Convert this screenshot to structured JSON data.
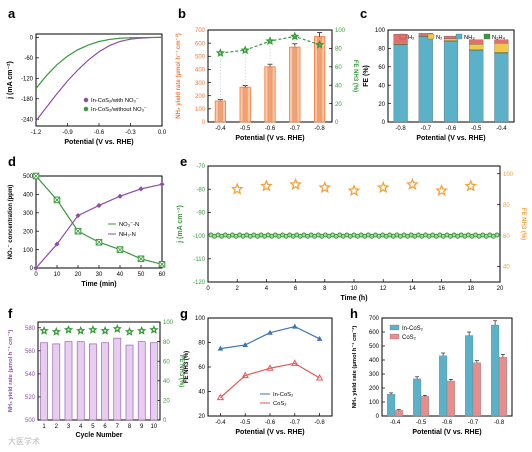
{
  "colors": {
    "orange": "#f07a3a",
    "green": "#3a9a3c",
    "purple": "#8e4fa8",
    "teal": "#5ab1c8",
    "pink": "#e88c8c",
    "blue": "#3f73b5",
    "star": "#f4a23a"
  },
  "panels": {
    "a": {
      "letter": "a",
      "chart_data": {
        "type": "line",
        "xlabel": "Potential (V vs. RHE)",
        "ylabel": "j (mA cm⁻²)",
        "xlim": [
          -1.2,
          0.0
        ],
        "ylim": [
          -260,
          10
        ],
        "xticks": [
          "-1.2",
          "-0.9",
          "-0.6",
          "-0.3",
          "0.0"
        ],
        "yticks": [
          "0",
          "-60",
          "-120",
          "-180",
          "-240"
        ],
        "legend_position": "bottom-right",
        "series": [
          {
            "name": "In-CoS₂/with NO₃⁻",
            "color": "#8e4fa8",
            "x": [
              -1.2,
              -1.1,
              -1.0,
              -0.9,
              -0.8,
              -0.7,
              -0.6,
              -0.5,
              -0.4,
              -0.3,
              -0.2,
              -0.1,
              0.0
            ],
            "y": [
              -245,
              -205,
              -165,
              -128,
              -95,
              -66,
              -42,
              -24,
              -12,
              -5,
              -2,
              -0.5,
              0
            ]
          },
          {
            "name": "In-CoS₂/without NO₃⁻",
            "color": "#3a9a3c",
            "x": [
              -1.2,
              -1.1,
              -1.0,
              -0.9,
              -0.8,
              -0.7,
              -0.6,
              -0.5,
              -0.4,
              -0.3,
              -0.2,
              -0.1,
              0.0
            ],
            "y": [
              -150,
              -112,
              -80,
              -55,
              -36,
              -22,
              -12,
              -6,
              -2.5,
              -1,
              -0.4,
              -0.1,
              0
            ]
          }
        ]
      }
    },
    "b": {
      "letter": "b",
      "chart_data": {
        "type": "bar",
        "xlabel": "Potential (V vs. RHE)",
        "ylabel": "NH₃ yield rate (μmol h⁻¹ cm⁻²)",
        "y2label": "FE NH3 (%)",
        "categories": [
          "-0.4",
          "-0.5",
          "-0.6",
          "-0.7",
          "-0.8"
        ],
        "ylim": [
          0,
          700
        ],
        "yticks": [
          "0",
          "100",
          "200",
          "300",
          "400",
          "500",
          "600",
          "700"
        ],
        "y2lim": [
          0,
          100
        ],
        "y2ticks": [
          "0",
          "20",
          "40",
          "60",
          "80",
          "100"
        ],
        "values": [
          160,
          265,
          420,
          570,
          650
        ],
        "errors": [
          10,
          12,
          20,
          25,
          30
        ],
        "fe": [
          75,
          78,
          88,
          93,
          84
        ],
        "fe_errors": [
          2,
          2,
          2,
          2,
          4
        ]
      }
    },
    "c": {
      "letter": "c",
      "chart_data": {
        "type": "bar",
        "stacked": true,
        "xlabel": "Potential (V vs. RHE)",
        "ylabel": "FE (%)",
        "categories": [
          "-0.8",
          "-0.7",
          "-0.6",
          "-0.5",
          "-0.4"
        ],
        "ylim": [
          0,
          100
        ],
        "yticks": [
          "0",
          "20",
          "40",
          "60",
          "80",
          "100"
        ],
        "legend_position": "top",
        "series": [
          {
            "name": "NH₃",
            "color": "#5ab1c8",
            "values": [
              84,
              93,
              88,
              78,
              75
            ]
          },
          {
            "name": "N₂H₄",
            "color": "#3a9a3c",
            "values": [
              0.5,
              0.4,
              0.4,
              0.5,
              0.5
            ]
          },
          {
            "name": "N₂",
            "color": "#f2c84b",
            "values": [
              1,
              1,
              2,
              6,
              10
            ]
          },
          {
            "name": "H₂",
            "color": "#e0706a",
            "values": [
              10,
              2,
              3,
              5,
              4
            ]
          }
        ]
      }
    },
    "d": {
      "letter": "d",
      "chart_data": {
        "type": "line",
        "xlabel": "Time (min)",
        "ylabel": "NO₃⁻ concentration (ppm)",
        "xlim": [
          0,
          60
        ],
        "ylim": [
          0,
          500
        ],
        "xticks": [
          "0",
          "10",
          "20",
          "30",
          "40",
          "50",
          "60"
        ],
        "yticks": [
          "0",
          "100",
          "200",
          "300",
          "400",
          "500"
        ],
        "legend_position": "right",
        "series": [
          {
            "name": "NO₃⁻-N",
            "color": "#3a9a3c",
            "x": [
              0,
              10,
              20,
              30,
              40,
              50,
              60
            ],
            "y": [
              500,
              370,
              200,
              140,
              100,
              50,
              20
            ]
          },
          {
            "name": "NH₃-N",
            "color": "#8e4fa8",
            "x": [
              0,
              10,
              20,
              30,
              40,
              50,
              60
            ],
            "y": [
              0,
              130,
              285,
              340,
              390,
              430,
              455
            ]
          }
        ]
      }
    },
    "e": {
      "letter": "e",
      "chart_data": {
        "type": "scatter",
        "xlabel": "Time (h)",
        "ylabel": "j (mA cm⁻²)",
        "y2label": "FE NH3 (%)",
        "xlim": [
          0,
          20
        ],
        "ylim": [
          -120,
          -70
        ],
        "xticks": [
          "0",
          "2",
          "4",
          "6",
          "8",
          "10",
          "12",
          "14",
          "16",
          "18",
          "20"
        ],
        "yticks": [
          "-70",
          "-80",
          "-90",
          "-100",
          "-110",
          "-120"
        ],
        "y2lim": [
          30,
          105
        ],
        "y2ticks": [
          "40",
          "60",
          "80",
          "100"
        ],
        "current_value": -100,
        "fe_x": [
          2,
          4,
          6,
          8,
          10,
          12,
          14,
          16,
          18
        ],
        "fe_y": [
          90,
          92,
          93,
          91,
          89,
          91,
          93,
          89,
          92
        ]
      }
    },
    "f": {
      "letter": "f",
      "chart_data": {
        "type": "bar",
        "xlabel": "Cycle Number",
        "ylabel": "NH₃ yield rate (μmol h⁻¹ cm⁻²)",
        "y2label": "FE NH3 (%)",
        "categories": [
          "1",
          "2",
          "3",
          "4",
          "5",
          "6",
          "7",
          "8",
          "9",
          "10"
        ],
        "ylim": [
          500,
          585
        ],
        "yticks": [
          "500",
          "520",
          "540",
          "560",
          "580"
        ],
        "y2lim": [
          0,
          100
        ],
        "y2ticks": [
          "0",
          "20",
          "40",
          "60",
          "80",
          "100"
        ],
        "values": [
          567,
          566,
          568,
          568,
          566,
          567,
          571,
          565,
          568,
          567
        ],
        "fe": [
          91,
          90,
          92,
          91,
          92,
          91,
          93,
          90,
          91,
          92
        ]
      }
    },
    "g": {
      "letter": "g",
      "chart_data": {
        "type": "line",
        "xlabel": "Potential (V vs. RHE)",
        "ylabel": "FE NH3 (%)",
        "categories": [
          "-0.4",
          "-0.5",
          "-0.6",
          "-0.7",
          "-0.8"
        ],
        "ylim": [
          20,
          100
        ],
        "yticks": [
          "20",
          "40",
          "60",
          "80",
          "100"
        ],
        "legend_position": "bottom-right",
        "series": [
          {
            "name": "In-CoS₂",
            "color": "#3f73b5",
            "values": [
              75,
              78,
              88,
              93,
              83
            ]
          },
          {
            "name": "CoS₂",
            "color": "#e05a5a",
            "values": [
              35,
              53,
              59,
              63,
              51
            ]
          }
        ]
      }
    },
    "h": {
      "letter": "h",
      "chart_data": {
        "type": "bar",
        "xlabel": "Potential (V vs. RHE)",
        "ylabel": "NH₃ yield rate (μmol h⁻¹ cm⁻²)",
        "categories": [
          "-0.4",
          "-0.5",
          "-0.6",
          "-0.7",
          "-0.8"
        ],
        "ylim": [
          0,
          700
        ],
        "yticks": [
          "0",
          "100",
          "200",
          "300",
          "400",
          "500",
          "600",
          "700"
        ],
        "legend_position": "top-left",
        "series": [
          {
            "name": "In-CoS₂",
            "color": "#5ab1c8",
            "values": [
              155,
              265,
              430,
              575,
              650
            ],
            "errors": [
              10,
              15,
              20,
              25,
              30
            ]
          },
          {
            "name": "CoS₂",
            "color": "#e88c8c",
            "values": [
              40,
              140,
              250,
              380,
              420
            ],
            "errors": [
              5,
              8,
              12,
              15,
              20
            ]
          }
        ]
      }
    }
  },
  "watermark": "大医学术"
}
